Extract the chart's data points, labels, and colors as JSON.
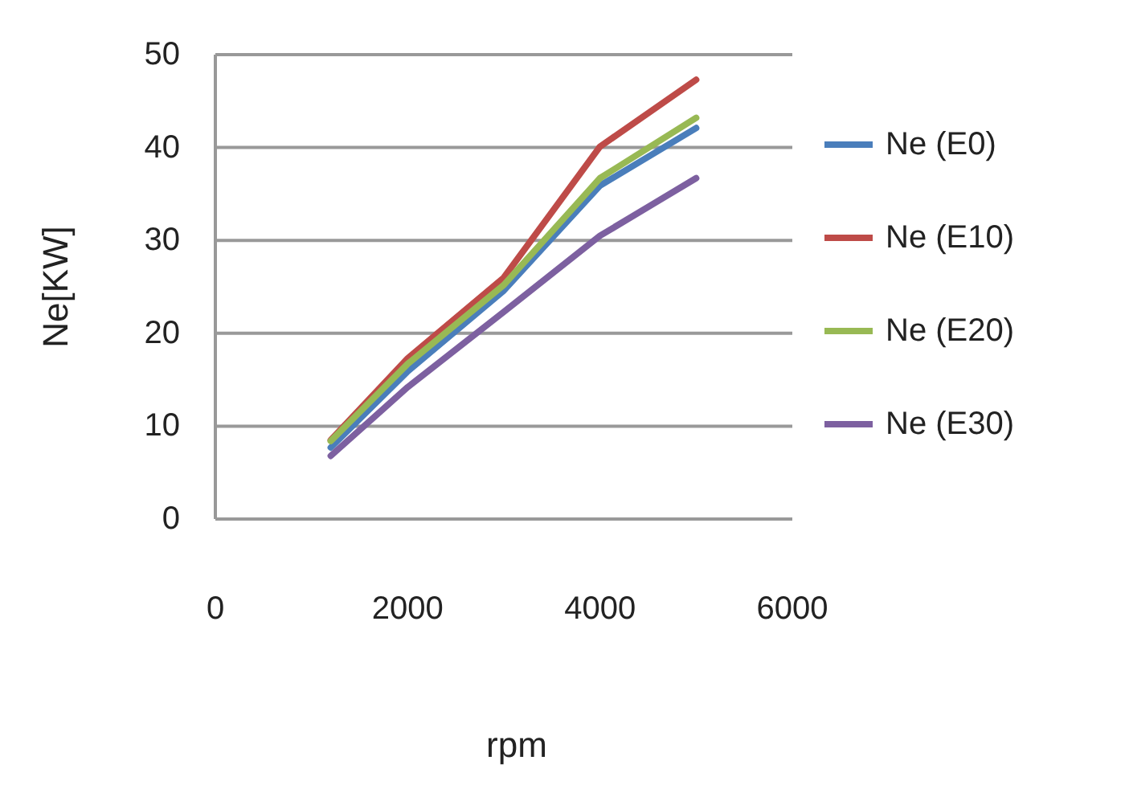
{
  "chart_data": {
    "type": "line",
    "xlabel": "rpm",
    "ylabel": "Ne[KW]",
    "x": [
      1200,
      2000,
      3000,
      4000,
      5000
    ],
    "series": [
      {
        "name": "Ne (E0)",
        "color": "#4a7ebb",
        "values": [
          7.7,
          15.9,
          24.6,
          35.9,
          42.1
        ]
      },
      {
        "name": "Ne (E10)",
        "color": "#be4b48",
        "values": [
          8.5,
          17.3,
          26,
          40.1,
          47.3
        ]
      },
      {
        "name": "Ne (E20)",
        "color": "#98b954",
        "values": [
          8.4,
          16.7,
          25.2,
          36.7,
          43.2
        ]
      },
      {
        "name": "Ne (E30)",
        "color": "#7d60a0",
        "values": [
          6.8,
          14.2,
          22.3,
          30.5,
          36.7
        ]
      }
    ],
    "xlim": [
      0,
      6000
    ],
    "xticks": [
      0,
      2000,
      4000,
      6000
    ],
    "ylim": [
      0,
      50
    ],
    "yticks": [
      0,
      10,
      20,
      30,
      40,
      50
    ],
    "grid": "y",
    "legend": "right",
    "marker": "none",
    "line_style": "solid"
  }
}
